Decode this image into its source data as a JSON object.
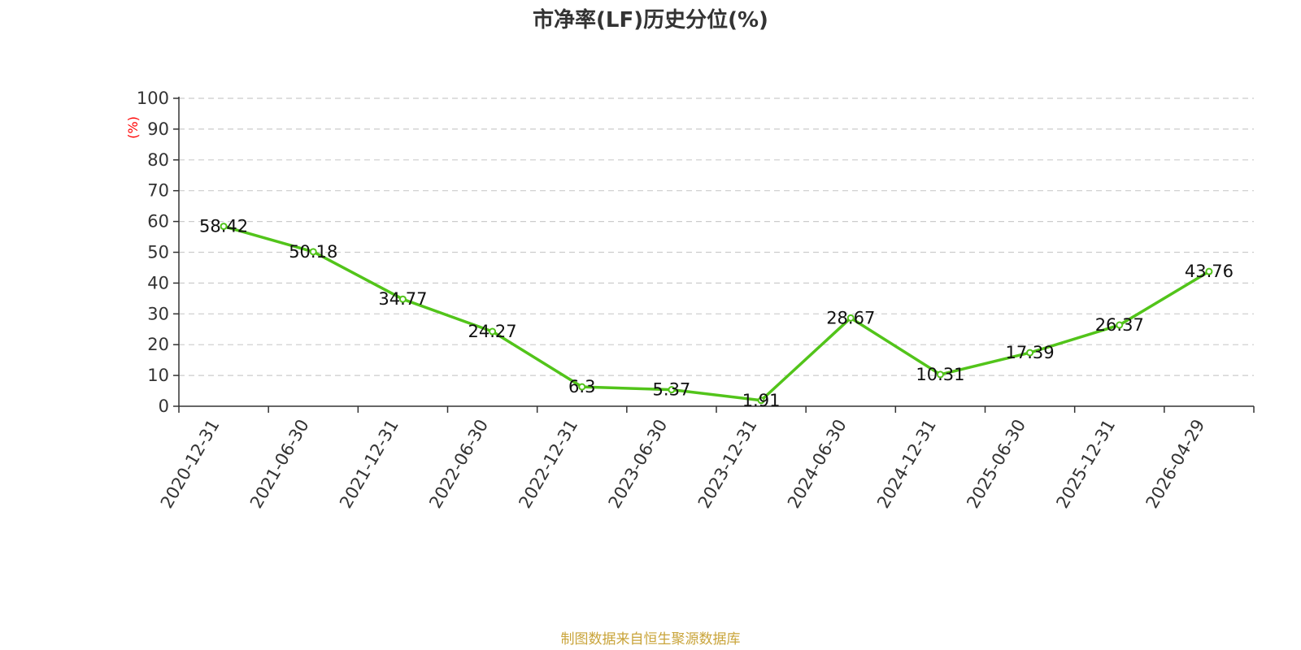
{
  "title": "市净率(LF)历史分位(%)",
  "source": "制图数据来自恒生聚源数据库",
  "colors": {
    "line": "#52c41a",
    "axis": "#333333",
    "grid": "#cccccc",
    "unit": "#ff0000",
    "source": "#c9a43a"
  },
  "chart_data": {
    "type": "line",
    "title": "市净率(LF)历史分位(%)",
    "y_unit_label": "(%)",
    "categories": [
      "2020-12-31",
      "2021-06-30",
      "2021-12-31",
      "2022-06-30",
      "2022-12-31",
      "2023-06-30",
      "2023-12-31",
      "2024-06-30",
      "2024-12-31",
      "2025-06-30",
      "2025-12-31",
      "2026-04-29"
    ],
    "values": [
      58.42,
      50.18,
      34.77,
      24.27,
      6.3,
      5.37,
      1.91,
      28.67,
      10.31,
      17.39,
      26.37,
      43.76
    ],
    "value_labels": [
      "58.42",
      "50.18",
      "34.77",
      "24.27",
      "6.3",
      "5.37",
      "1.91",
      "28.67",
      "10.31",
      "17.39",
      "26.37",
      "43.76"
    ],
    "ylim": [
      0,
      100
    ],
    "yticks": [
      0,
      10,
      20,
      30,
      40,
      50,
      60,
      70,
      80,
      90,
      100
    ],
    "grid": true,
    "legend": "none"
  }
}
